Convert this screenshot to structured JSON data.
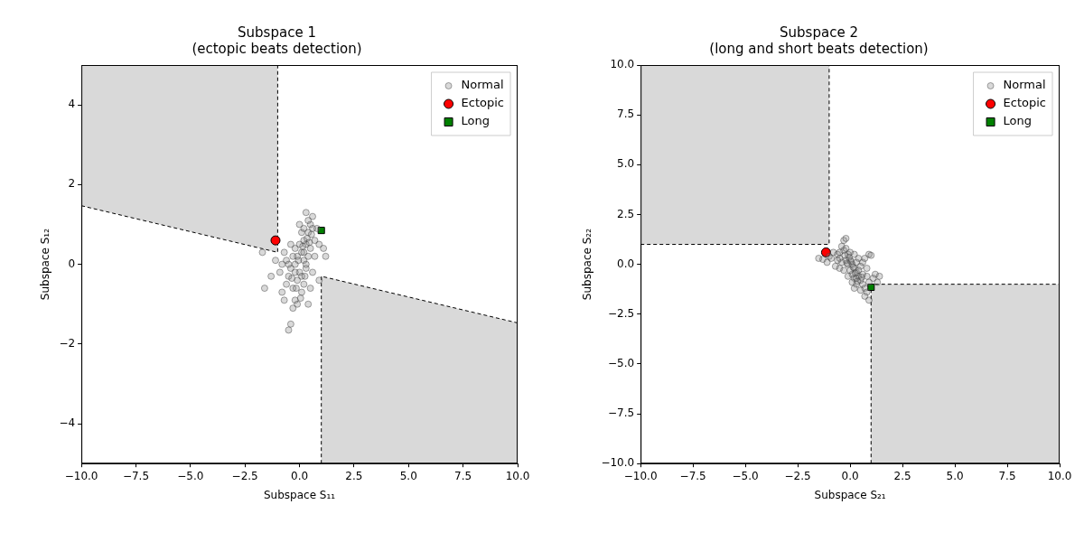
{
  "chart_data": [
    {
      "type": "scatter",
      "title": [
        "Subspace 1",
        "(ectopic beats detection)"
      ],
      "x_label": "Subspace S₁₁",
      "y_label": "Subspace S₁₂",
      "xlim": [
        -10,
        10
      ],
      "ylim": [
        -5,
        5
      ],
      "xticks": [
        {
          "value": -10,
          "label": "−10.0"
        },
        {
          "value": -7.5,
          "label": "−7.5"
        },
        {
          "value": -5,
          "label": "−5.0"
        },
        {
          "value": -2.5,
          "label": "−2.5"
        },
        {
          "value": 0,
          "label": "0.0"
        },
        {
          "value": 2.5,
          "label": "2.5"
        },
        {
          "value": 5,
          "label": "5.0"
        },
        {
          "value": 7.5,
          "label": "7.5"
        },
        {
          "value": 10,
          "label": "10.0"
        }
      ],
      "yticks": [
        {
          "value": -4,
          "label": "−4"
        },
        {
          "value": -2,
          "label": "−2"
        },
        0,
        2,
        4
      ],
      "grid": false,
      "legend": "upper right",
      "regions": [
        {
          "vertices": [
            [
              -10,
              5
            ],
            [
              -1,
              5
            ],
            [
              -1,
              0.3
            ],
            [
              -10,
              1.47
            ]
          ]
        },
        {
          "vertices": [
            [
              1,
              -5
            ],
            [
              1,
              -0.3
            ],
            [
              10,
              -1.47
            ],
            [
              10,
              -5
            ]
          ]
        }
      ],
      "boundaries": [
        [
          [
            -10,
            1.47
          ],
          [
            -1,
            0.3
          ],
          [
            -1,
            5
          ]
        ],
        [
          [
            1,
            -5
          ],
          [
            1,
            -0.3
          ],
          [
            10,
            -1.47
          ]
        ]
      ],
      "series": [
        {
          "name": "Normal",
          "color": "#808080",
          "marker": "circle",
          "values": [
            [
              0.1,
              0.3
            ],
            [
              0.3,
              0.5
            ],
            [
              0.2,
              0.1
            ],
            [
              -0.2,
              0.0
            ],
            [
              -0.4,
              -0.1
            ],
            [
              0.4,
              0.8
            ],
            [
              0.5,
              1.0
            ],
            [
              0.3,
              1.3
            ],
            [
              0.6,
              1.2
            ],
            [
              0.2,
              0.6
            ],
            [
              0.4,
              0.2
            ],
            [
              0.0,
              -0.2
            ],
            [
              -0.1,
              -0.4
            ],
            [
              -0.3,
              -0.6
            ],
            [
              -0.2,
              -0.9
            ],
            [
              -0.1,
              -1.0
            ],
            [
              0.1,
              -0.7
            ],
            [
              0.2,
              -0.5
            ],
            [
              -0.5,
              -0.3
            ],
            [
              -0.6,
              0.1
            ],
            [
              -0.8,
              0.0
            ],
            [
              -0.9,
              -0.2
            ],
            [
              -0.7,
              0.3
            ],
            [
              -1.1,
              0.1
            ],
            [
              -1.3,
              -0.3
            ],
            [
              -1.6,
              -0.6
            ],
            [
              -1.7,
              0.3
            ],
            [
              -0.4,
              -1.5
            ],
            [
              -0.5,
              -1.65
            ],
            [
              -0.3,
              -1.1
            ],
            [
              0.0,
              0.5
            ],
            [
              0.1,
              0.8
            ],
            [
              0.3,
              -0.1
            ],
            [
              0.5,
              0.4
            ],
            [
              0.7,
              0.6
            ],
            [
              0.8,
              0.9
            ],
            [
              0.9,
              0.5
            ],
            [
              0.6,
              -0.2
            ],
            [
              0.5,
              -0.6
            ],
            [
              0.4,
              -1.0
            ],
            [
              -0.2,
              0.4
            ],
            [
              -0.4,
              0.5
            ],
            [
              -0.6,
              -0.5
            ],
            [
              -0.8,
              -0.7
            ],
            [
              0.2,
              0.9
            ],
            [
              0.0,
              1.0
            ],
            [
              -0.1,
              0.2
            ],
            [
              0.3,
              0.0
            ],
            [
              0.1,
              -0.3
            ],
            [
              -0.3,
              0.2
            ],
            [
              0.7,
              0.2
            ],
            [
              1.1,
              0.4
            ],
            [
              1.2,
              0.2
            ],
            [
              0.9,
              -0.4
            ],
            [
              0.6,
              0.9
            ],
            [
              0.4,
              1.1
            ],
            [
              -0.5,
              0.0
            ],
            [
              -0.2,
              -0.2
            ],
            [
              0.2,
              0.3
            ],
            [
              0.35,
              0.65
            ],
            [
              0.15,
              0.45
            ],
            [
              -0.05,
              0.1
            ],
            [
              0.25,
              -0.3
            ],
            [
              -0.35,
              -0.35
            ],
            [
              0.05,
              -0.85
            ],
            [
              -0.15,
              -0.6
            ],
            [
              0.45,
              0.55
            ],
            [
              0.55,
              0.75
            ],
            [
              -0.7,
              -0.9
            ]
          ]
        },
        {
          "name": "Ectopic",
          "color": "#ff0000",
          "marker": "circle",
          "values": [
            [
              -1.1,
              0.6
            ]
          ]
        },
        {
          "name": "Long",
          "color": "#008000",
          "marker": "square",
          "values": [
            [
              1.0,
              0.85
            ]
          ]
        }
      ]
    },
    {
      "type": "scatter",
      "title": [
        "Subspace 2",
        "(long and short beats detection)"
      ],
      "x_label": "Subspace S₂₁",
      "y_label": "Subspace S₂₂",
      "xlim": [
        -10,
        10
      ],
      "ylim": [
        -10,
        10
      ],
      "xticks": [
        {
          "value": -10,
          "label": "−10.0"
        },
        {
          "value": -7.5,
          "label": "−7.5"
        },
        {
          "value": -5,
          "label": "−5.0"
        },
        {
          "value": -2.5,
          "label": "−2.5"
        },
        {
          "value": 0,
          "label": "0.0"
        },
        {
          "value": 2.5,
          "label": "2.5"
        },
        {
          "value": 5,
          "label": "5.0"
        },
        {
          "value": 7.5,
          "label": "7.5"
        },
        {
          "value": 10,
          "label": "10.0"
        }
      ],
      "yticks": [
        {
          "value": -10,
          "label": "−10.0"
        },
        {
          "value": -7.5,
          "label": "−7.5"
        },
        {
          "value": -5,
          "label": "−5.0"
        },
        {
          "value": -2.5,
          "label": "−2.5"
        },
        {
          "value": 0,
          "label": "0.0"
        },
        {
          "value": 2.5,
          "label": "2.5"
        },
        {
          "value": 5,
          "label": "5.0"
        },
        {
          "value": 7.5,
          "label": "7.5"
        },
        {
          "value": 10,
          "label": "10.0"
        }
      ],
      "grid": false,
      "legend": "upper right",
      "regions": [
        {
          "vertices": [
            [
              -10,
              10
            ],
            [
              -1,
              10
            ],
            [
              -1,
              1
            ],
            [
              -10,
              1
            ]
          ]
        },
        {
          "vertices": [
            [
              1,
              -10
            ],
            [
              1,
              -1
            ],
            [
              10,
              -1
            ],
            [
              10,
              -10
            ]
          ]
        }
      ],
      "boundaries": [
        [
          [
            -10,
            1
          ],
          [
            -1,
            1
          ],
          [
            -1,
            10
          ]
        ],
        [
          [
            1,
            -10
          ],
          [
            1,
            -1
          ],
          [
            10,
            -1
          ]
        ]
      ],
      "series": [
        {
          "name": "Normal",
          "color": "#808080",
          "marker": "circle",
          "values": [
            [
              -1.5,
              0.3
            ],
            [
              -1.3,
              0.25
            ],
            [
              -1.0,
              0.4
            ],
            [
              -0.8,
              0.6
            ],
            [
              -0.6,
              0.5
            ],
            [
              -0.5,
              0.3
            ],
            [
              -0.4,
              0.9
            ],
            [
              -0.3,
              1.2
            ],
            [
              -0.2,
              1.3
            ],
            [
              -0.3,
              0.7
            ],
            [
              -0.1,
              0.5
            ],
            [
              0.0,
              0.2
            ],
            [
              0.1,
              0.0
            ],
            [
              0.2,
              -0.2
            ],
            [
              0.3,
              -0.4
            ],
            [
              0.4,
              -0.6
            ],
            [
              0.5,
              -0.8
            ],
            [
              0.6,
              -1.0
            ],
            [
              0.7,
              -1.2
            ],
            [
              0.8,
              -1.4
            ],
            [
              0.9,
              -1.8
            ],
            [
              0.7,
              -1.6
            ],
            [
              0.5,
              -1.3
            ],
            [
              0.3,
              -1.0
            ],
            [
              0.2,
              -0.7
            ],
            [
              0.1,
              -0.5
            ],
            [
              0.0,
              -0.3
            ],
            [
              -0.1,
              0.0
            ],
            [
              -0.2,
              0.2
            ],
            [
              -0.4,
              0.1
            ],
            [
              -0.6,
              0.2
            ],
            [
              -0.9,
              0.3
            ],
            [
              -1.1,
              0.1
            ],
            [
              -0.7,
              -0.1
            ],
            [
              -0.5,
              -0.2
            ],
            [
              -0.3,
              -0.3
            ],
            [
              0.4,
              0.3
            ],
            [
              0.6,
              0.1
            ],
            [
              0.8,
              -0.2
            ],
            [
              0.9,
              0.5
            ],
            [
              1.0,
              0.45
            ],
            [
              1.2,
              -0.5
            ],
            [
              1.4,
              -0.6
            ],
            [
              1.3,
              -0.9
            ],
            [
              1.1,
              -0.7
            ],
            [
              0.9,
              -0.9
            ],
            [
              0.2,
              0.5
            ],
            [
              0.0,
              0.6
            ],
            [
              -0.2,
              0.8
            ],
            [
              -0.5,
              0.6
            ],
            [
              0.3,
              0.1
            ],
            [
              0.5,
              -0.1
            ],
            [
              0.7,
              0.3
            ],
            [
              0.1,
              -0.9
            ],
            [
              0.3,
              -0.7
            ],
            [
              0.6,
              -0.5
            ],
            [
              0.8,
              -0.6
            ],
            [
              0.2,
              -1.2
            ],
            [
              -0.1,
              -0.6
            ],
            [
              0.4,
              -0.3
            ],
            [
              0.15,
              -0.15
            ],
            [
              -0.05,
              0.35
            ],
            [
              0.25,
              -0.45
            ],
            [
              -0.25,
              0.45
            ],
            [
              0.55,
              -0.65
            ],
            [
              0.05,
              0.15
            ],
            [
              -0.15,
              0.05
            ],
            [
              0.35,
              -0.85
            ]
          ]
        },
        {
          "name": "Ectopic",
          "color": "#ff0000",
          "marker": "circle",
          "values": [
            [
              -1.15,
              0.6
            ]
          ]
        },
        {
          "name": "Long",
          "color": "#008000",
          "marker": "square",
          "values": [
            [
              1.0,
              -1.15
            ]
          ]
        }
      ]
    }
  ]
}
